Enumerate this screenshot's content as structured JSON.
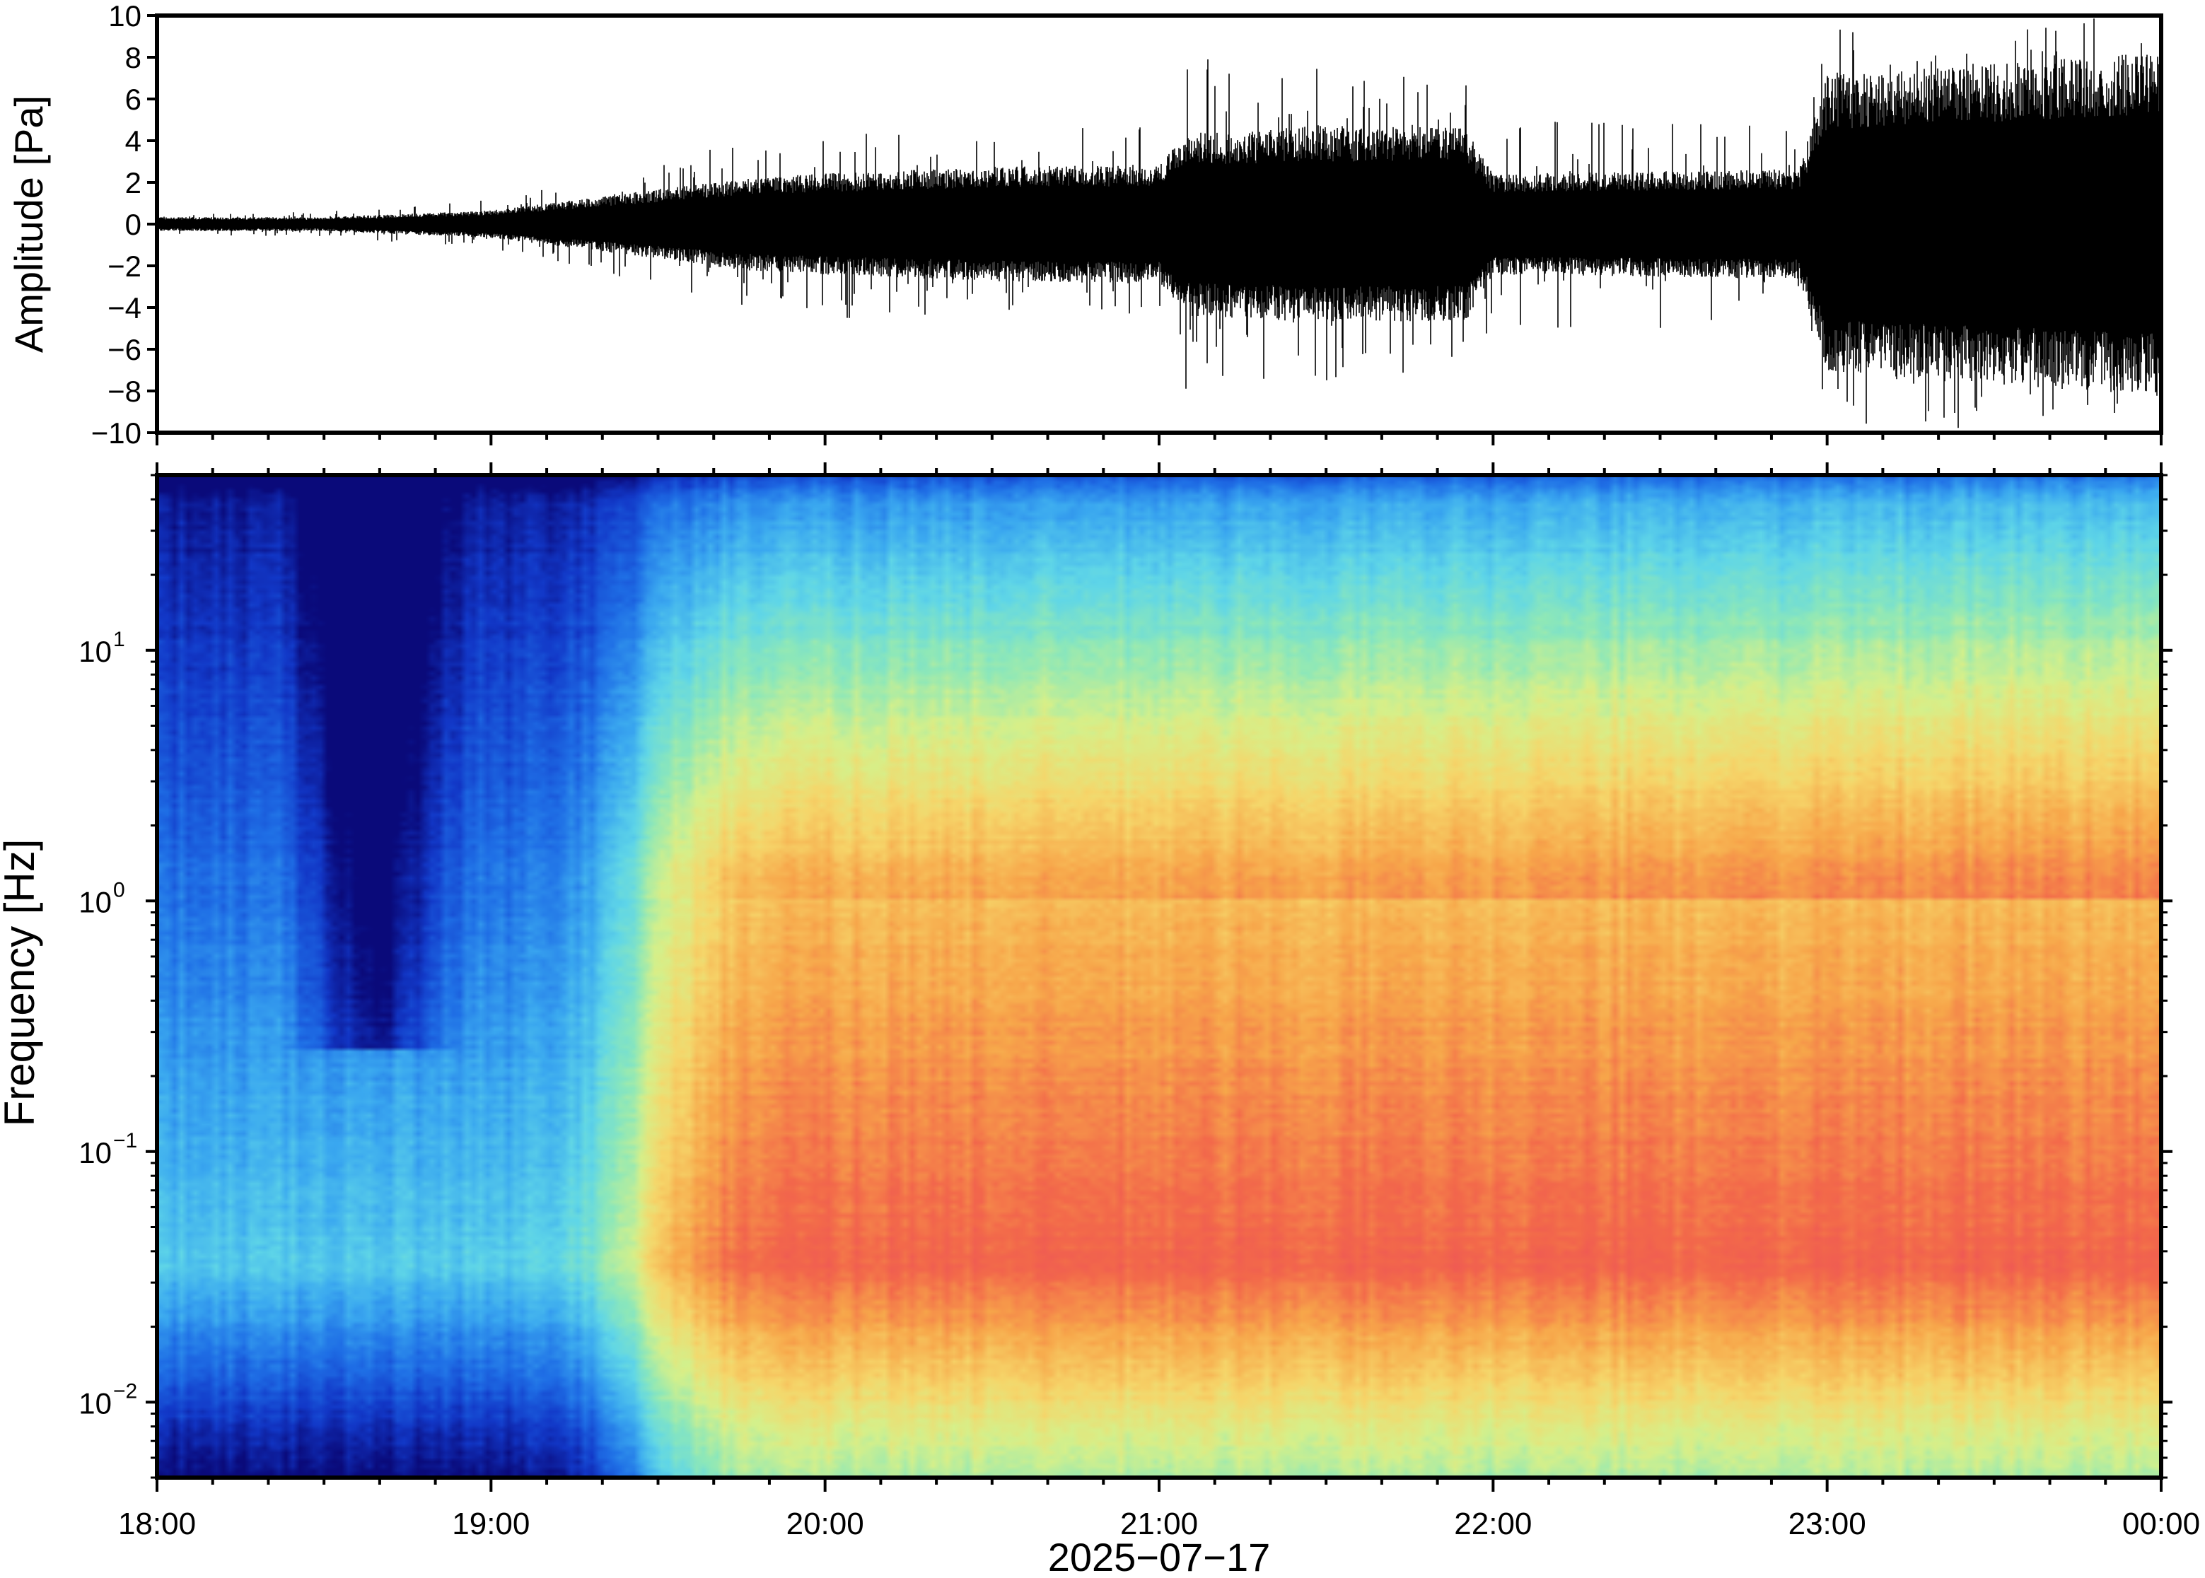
{
  "chart_data": [
    {
      "type": "line",
      "title": "",
      "ylabel": "Amplitude [Pa]",
      "xlabel": "",
      "ylim": [
        -10,
        10
      ],
      "yticks": [
        -10,
        -8,
        -6,
        -4,
        -2,
        0,
        2,
        4,
        6,
        8,
        10
      ],
      "ytick_labels": [
        "−10",
        "−8",
        "−6",
        "−4",
        "−2",
        "0",
        "2",
        "4",
        "6",
        "8",
        "10"
      ],
      "xlim": [
        "18:00",
        "00:00"
      ],
      "grid": false,
      "series": [
        {
          "color": "#000000",
          "envelope": {
            "x": [
              "18:00",
              "18:30",
              "19:00",
              "19:30",
              "19:45",
              "20:00",
              "20:30",
              "21:00",
              "21:05",
              "21:30",
              "21:55",
              "22:00",
              "22:30",
              "22:55",
              "23:00",
              "23:30",
              "00:00"
            ],
            "typical_abs": [
              0.3,
              0.3,
              0.6,
              1.5,
              2.0,
              2.2,
              2.5,
              2.6,
              4.0,
              4.3,
              4.2,
              2.2,
              2.3,
              2.4,
              6.5,
              7.0,
              7.5
            ],
            "max_abs": [
              0.5,
              0.6,
              1.2,
              3.0,
              4.0,
              4.5,
              4.5,
              5.0,
              8.0,
              7.5,
              7.0,
              5.0,
              5.0,
              5.5,
              10.0,
              10.0,
              10.0
            ]
          }
        }
      ]
    },
    {
      "type": "heatmap",
      "title": "",
      "ylabel": "Frequency [Hz]",
      "xlabel": "2025−07−17",
      "yscale": "log",
      "ylim": [
        0.005,
        50
      ],
      "yticks": [
        0.01,
        0.1,
        1,
        10
      ],
      "ytick_labels": [
        {
          "base": "10",
          "exp": "−2"
        },
        {
          "base": "10",
          "exp": "−1"
        },
        {
          "base": "10",
          "exp": "0"
        },
        {
          "base": "10",
          "exp": "1"
        }
      ],
      "xticks": [
        "18:00",
        "19:00",
        "20:00",
        "21:00",
        "22:00",
        "23:00",
        "00:00"
      ],
      "colormap": [
        "#0a0a7a",
        "#1238c8",
        "#1f6fe6",
        "#3aa8f0",
        "#5fd6e8",
        "#8ee8b8",
        "#d6f08a",
        "#f6d66a",
        "#f7a64a",
        "#f36a4a",
        "#ee5258",
        "#f6b0b8"
      ],
      "colorbar": false,
      "grid": false
    }
  ]
}
